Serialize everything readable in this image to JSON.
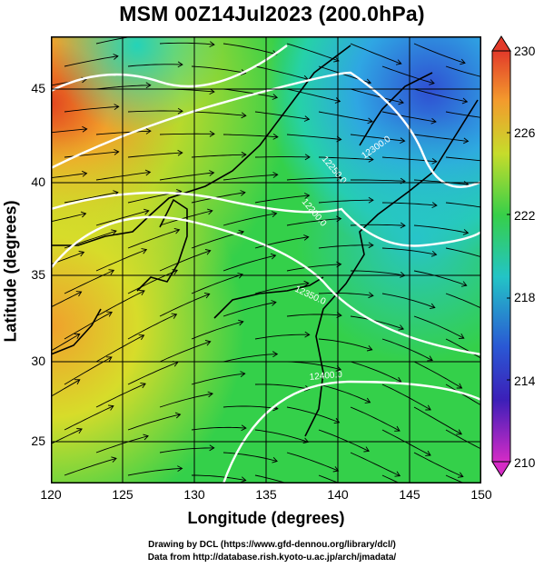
{
  "title": "MSM 00Z14Jul2023 (200.0hPa)",
  "xaxis": {
    "label": "Longitude (degrees)",
    "ticks": [
      "120",
      "125",
      "130",
      "135",
      "140",
      "145",
      "150"
    ],
    "range": [
      120,
      150
    ]
  },
  "yaxis": {
    "label": "Latitude  (degrees)",
    "ticks": [
      "25",
      "30",
      "35",
      "40",
      "45"
    ],
    "range": [
      22.5,
      47.5
    ]
  },
  "colorbar": {
    "ticks": [
      "230",
      "226",
      "222",
      "218",
      "214",
      "210"
    ],
    "range": [
      210,
      230
    ]
  },
  "contour_labels": [
    "12300.0",
    "12250.0",
    "12200.0",
    "12350.0",
    "12400.0"
  ],
  "credits": [
    "Drawing by DCL (https://www.gfd-dennou.org/library/dcl/)",
    "Data from http://database.rish.kyoto-u.ac.jp/arch/jmadata/"
  ],
  "colors": {
    "cold": "#2b3fd0",
    "mid": "#22c23a",
    "warm": "#f25a2a",
    "contour": "#ffffff",
    "stream": "#000000"
  },
  "chart_data": {
    "type": "heatmap",
    "variable": "temperature (K) shaded, geopotential height contours, wind streamlines",
    "x": [
      120,
      125,
      130,
      135,
      140,
      145,
      150
    ],
    "y": [
      25,
      30,
      35,
      40,
      45
    ],
    "contour_levels": [
      12200.0,
      12250.0,
      12300.0,
      12350.0,
      12400.0
    ],
    "color_range": [
      210,
      230
    ]
  }
}
